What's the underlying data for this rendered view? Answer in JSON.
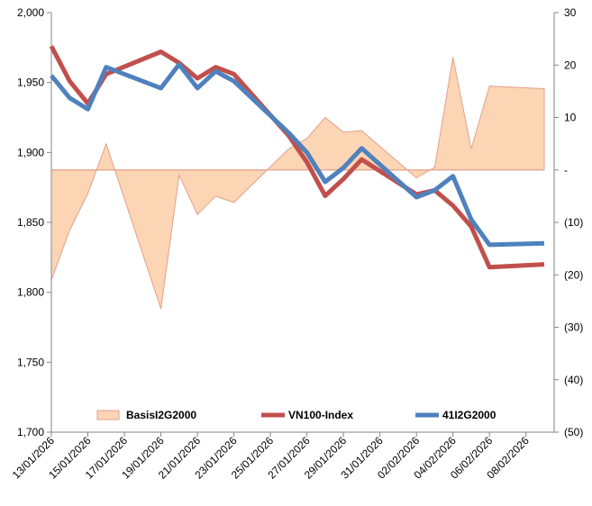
{
  "chart_data": {
    "type": "line",
    "x": [
      "13/01/2026",
      "14/01/2026",
      "15/01/2026",
      "16/01/2026",
      "19/01/2026",
      "20/01/2026",
      "21/01/2026",
      "22/01/2026",
      "23/01/2026",
      "26/01/2026",
      "27/01/2026",
      "28/01/2026",
      "29/01/2026",
      "30/01/2026",
      "02/02/2026",
      "03/02/2026",
      "04/02/2026",
      "05/02/2026",
      "06/02/2026",
      "09/02/2026"
    ],
    "x_tick_labels": [
      "13/01/2026",
      "15/01/2026",
      "17/01/2026",
      "19/01/2026",
      "21/01/2026",
      "23/01/2026",
      "25/01/2026",
      "27/01/2026",
      "29/01/2026",
      "31/01/2026",
      "02/02/2026",
      "04/02/2026",
      "06/02/2026",
      "08/02/2026"
    ],
    "x_range": [
      "13/01/2026",
      "09/02/2026"
    ],
    "series": [
      {
        "name": "BasisI2G2000",
        "kind": "area",
        "axis": "right",
        "color": "#fcd5b5",
        "edge_color": "#e2a08a",
        "points": [
          [
            "13/01/2026",
            -21
          ],
          [
            "14/01/2026",
            -11.5
          ],
          [
            "15/01/2026",
            -4.5
          ],
          [
            "16/01/2026",
            5
          ],
          [
            "19/01/2026",
            -26.5
          ],
          [
            "20/01/2026",
            -1
          ],
          [
            "21/01/2026",
            -8.5
          ],
          [
            "22/01/2026",
            -5
          ],
          [
            "23/01/2026",
            -6.2
          ],
          [
            "26/01/2026",
            4
          ],
          [
            "27/01/2026",
            6
          ],
          [
            "28/01/2026",
            10
          ],
          [
            "29/01/2026",
            7.2
          ],
          [
            "30/01/2026",
            7.5
          ],
          [
            "02/02/2026",
            -1.5
          ],
          [
            "03/02/2026",
            0.5
          ],
          [
            "04/02/2026",
            21.5
          ],
          [
            "05/02/2026",
            4
          ],
          [
            "06/02/2026",
            16
          ],
          [
            "09/02/2026",
            15.5
          ]
        ]
      },
      {
        "name": "VN100-Index",
        "kind": "line",
        "axis": "left",
        "color": "#c0504d",
        "points": [
          [
            "13/01/2026",
            1976
          ],
          [
            "14/01/2026",
            1951
          ],
          [
            "15/01/2026",
            1935
          ],
          [
            "16/01/2026",
            1956
          ],
          [
            "19/01/2026",
            1972
          ],
          [
            "20/01/2026",
            1964
          ],
          [
            "21/01/2026",
            1953
          ],
          [
            "22/01/2026",
            1961
          ],
          [
            "23/01/2026",
            1956
          ],
          [
            "26/01/2026",
            1912
          ],
          [
            "27/01/2026",
            1893
          ],
          [
            "28/01/2026",
            1869
          ],
          [
            "29/01/2026",
            1881
          ],
          [
            "30/01/2026",
            1895
          ],
          [
            "02/02/2026",
            1870
          ],
          [
            "03/02/2026",
            1873
          ],
          [
            "04/02/2026",
            1862
          ],
          [
            "05/02/2026",
            1847
          ],
          [
            "06/02/2026",
            1818
          ],
          [
            "09/02/2026",
            1820
          ]
        ]
      },
      {
        "name": "41I2G2000",
        "kind": "line",
        "axis": "left",
        "color": "#4f81bd",
        "points": [
          [
            "13/01/2026",
            1955
          ],
          [
            "14/01/2026",
            1939
          ],
          [
            "15/01/2026",
            1931
          ],
          [
            "16/01/2026",
            1961
          ],
          [
            "19/01/2026",
            1946
          ],
          [
            "20/01/2026",
            1963
          ],
          [
            "21/01/2026",
            1946
          ],
          [
            "22/01/2026",
            1958
          ],
          [
            "23/01/2026",
            1951
          ],
          [
            "26/01/2026",
            1914
          ],
          [
            "27/01/2026",
            1900
          ],
          [
            "28/01/2026",
            1879
          ],
          [
            "29/01/2026",
            1889
          ],
          [
            "30/01/2026",
            1903
          ],
          [
            "02/02/2026",
            1868
          ],
          [
            "03/02/2026",
            1873
          ],
          [
            "04/02/2026",
            1883
          ],
          [
            "05/02/2026",
            1852
          ],
          [
            "06/02/2026",
            1834
          ],
          [
            "09/02/2026",
            1835
          ]
        ]
      }
    ],
    "left_axis": {
      "min": 1700,
      "max": 2000,
      "step": 50,
      "tick_labels": [
        "1,700",
        "1,750",
        "1,800",
        "1,850",
        "1,900",
        "1,950",
        "2,000"
      ]
    },
    "right_axis": {
      "min": -50,
      "max": 30,
      "step": 10,
      "tick_labels": [
        "(50)",
        "(40)",
        "(30)",
        "(20)",
        "(10)",
        "-",
        "10",
        "20",
        "30"
      ]
    },
    "legend": {
      "placement": "bottom-inside",
      "items": [
        {
          "label": "BasisI2G2000",
          "swatch": "area"
        },
        {
          "label": "VN100-Index",
          "swatch": "line"
        },
        {
          "label": "41I2G2000",
          "swatch": "line"
        }
      ]
    },
    "grid": false,
    "title": "",
    "xlabel": "",
    "ylabel": ""
  }
}
